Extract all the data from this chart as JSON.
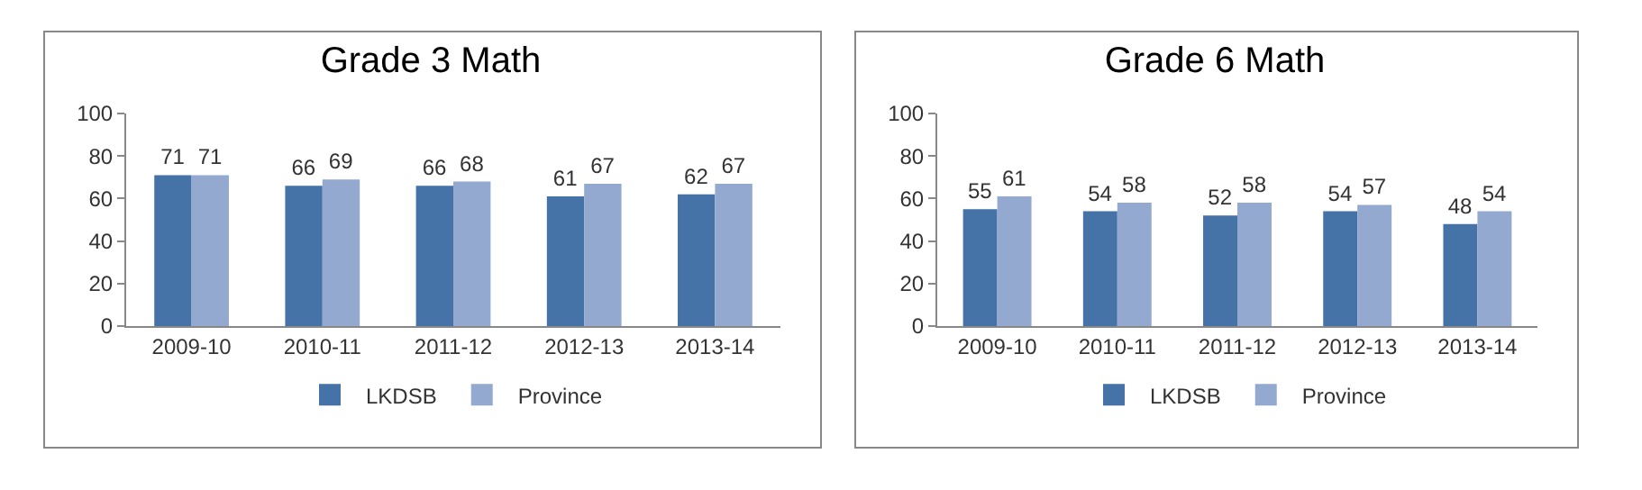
{
  "chart_data": [
    {
      "type": "bar",
      "title": "Grade 3 Math",
      "categories": [
        "2009-10",
        "2010-11",
        "2011-12",
        "2012-13",
        "2013-14"
      ],
      "series": [
        {
          "name": "LKDSB",
          "color": "#4572a7",
          "values": [
            71,
            66,
            66,
            61,
            62
          ]
        },
        {
          "name": "Province",
          "color": "#93a9cf",
          "values": [
            71,
            69,
            68,
            67,
            67
          ]
        }
      ],
      "ylim": [
        0,
        100
      ],
      "yticks": [
        0,
        20,
        40,
        60,
        80,
        100
      ],
      "grid": false,
      "legend": "bottom",
      "data_labels": true
    },
    {
      "type": "bar",
      "title": "Grade 6 Math",
      "categories": [
        "2009-10",
        "2010-11",
        "2011-12",
        "2012-13",
        "2013-14"
      ],
      "series": [
        {
          "name": "LKDSB",
          "color": "#4572a7",
          "values": [
            55,
            54,
            52,
            54,
            48
          ]
        },
        {
          "name": "Province",
          "color": "#93a9cf",
          "values": [
            61,
            58,
            58,
            57,
            54
          ]
        }
      ],
      "ylim": [
        0,
        100
      ],
      "yticks": [
        0,
        20,
        40,
        60,
        80,
        100
      ],
      "grid": false,
      "legend": "bottom",
      "data_labels": true
    }
  ]
}
